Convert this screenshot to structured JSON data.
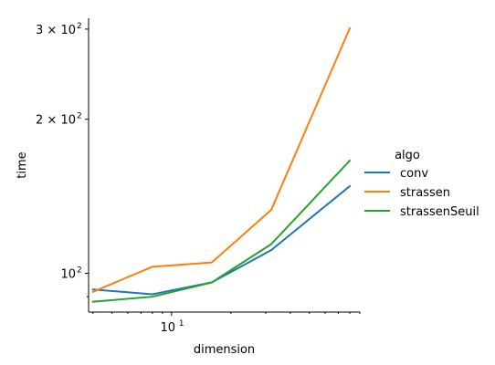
{
  "chart_data": {
    "type": "line",
    "xlabel": "dimension",
    "ylabel": "time",
    "xscale": "log",
    "yscale": "log",
    "xlim": [
      3.8,
      90
    ],
    "ylim": [
      84,
      315
    ],
    "grid": false,
    "x_ticks": [
      {
        "value": 10,
        "label": "10",
        "sup": "1"
      }
    ],
    "y_ticks": [
      {
        "value": 100,
        "label": "10",
        "sup": "2"
      },
      {
        "value": 200,
        "label": "2 × 10",
        "sup": "2"
      },
      {
        "value": 300,
        "label": "3 × 10",
        "sup": "2"
      }
    ],
    "legend": {
      "title": "algo",
      "placement": "right"
    },
    "x": [
      4,
      8,
      16,
      32,
      80
    ],
    "series": [
      {
        "name": "conv",
        "color": "#1f77b4",
        "values": [
          93,
          91,
          96,
          111,
          148
        ]
      },
      {
        "name": "strassen",
        "color": "#ff7f0e",
        "values": [
          92,
          103,
          105,
          133,
          301
        ]
      },
      {
        "name": "strassenSeuil",
        "color": "#2ca02c",
        "values": [
          88,
          90,
          96,
          114,
          166
        ]
      }
    ]
  }
}
